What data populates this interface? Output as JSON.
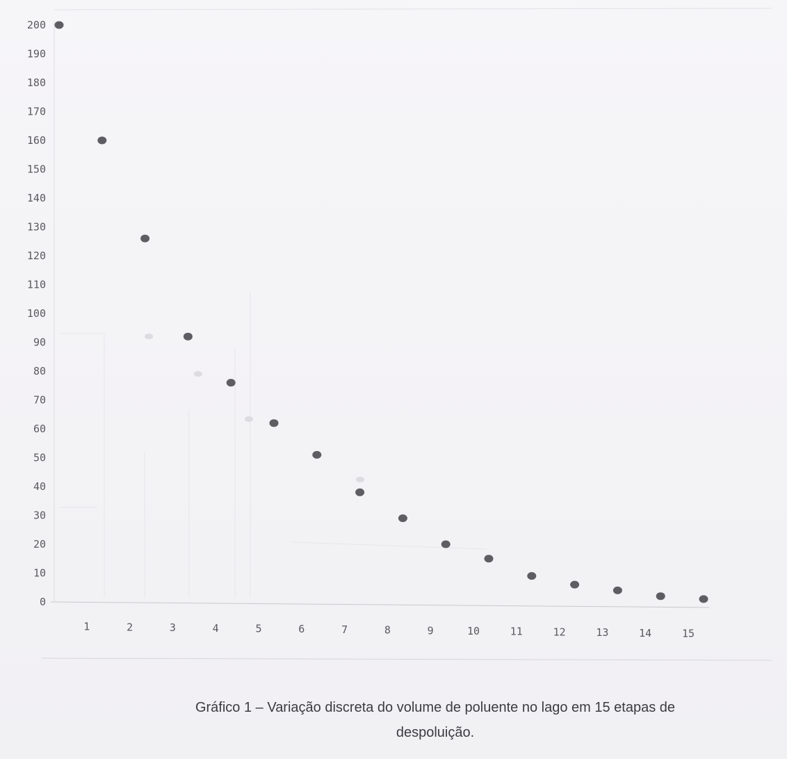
{
  "chart_data": {
    "type": "scatter",
    "title": "",
    "xlabel": "",
    "ylabel": "",
    "xlim": [
      0,
      15
    ],
    "ylim": [
      0,
      200
    ],
    "x_ticks": [
      "1",
      "2",
      "3",
      "4",
      "5",
      "6",
      "7",
      "8",
      "9",
      "10",
      "11",
      "12",
      "13",
      "14",
      "15"
    ],
    "y_ticks": [
      "200",
      "190",
      "180",
      "170",
      "160",
      "150",
      "140",
      "130",
      "120",
      "110",
      "100",
      "90",
      "80",
      "70",
      "60",
      "50",
      "40",
      "30",
      "20",
      "10",
      "0"
    ],
    "series": [
      {
        "x": [
          0,
          1,
          2,
          3,
          4,
          5,
          6,
          7,
          8,
          9,
          10,
          11,
          12,
          13,
          14,
          15
        ],
        "y": [
          200,
          160,
          126,
          92,
          76,
          62,
          51,
          38,
          29,
          20,
          15,
          9,
          6,
          4,
          2,
          1
        ]
      }
    ],
    "marker_color": "#4d4d52",
    "grid": false
  },
  "caption": {
    "line1": "Gráfico 1 – Variação discreta do volume de poluente no lago em 15 etapas de",
    "line2": "despoluição."
  }
}
